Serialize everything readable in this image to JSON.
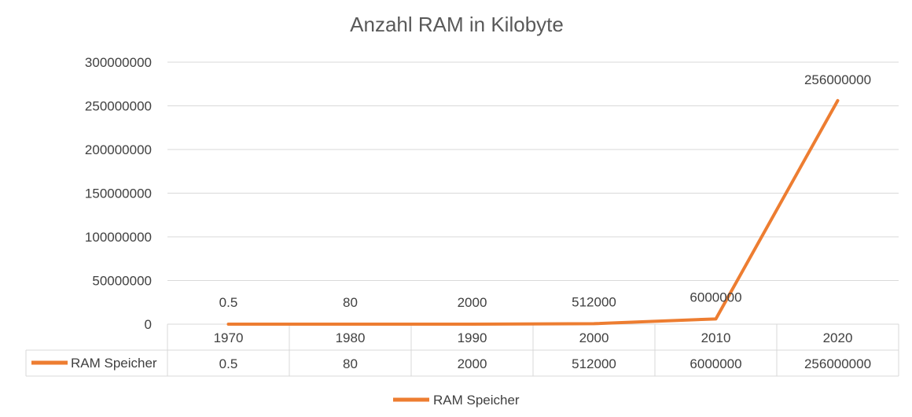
{
  "chart_data": {
    "type": "line",
    "title": "Anzahl RAM in Kilobyte",
    "categories": [
      "1970",
      "1980",
      "1990",
      "2000",
      "2010",
      "2020"
    ],
    "series": [
      {
        "name": "RAM Speicher",
        "values": [
          0.5,
          80,
          2000,
          512000,
          6000000,
          256000000
        ],
        "labels": [
          "0.5",
          "80",
          "2000",
          "512000",
          "6000000",
          "256000000"
        ],
        "color": "#ED7D31"
      }
    ],
    "ylim": [
      0,
      300000000
    ],
    "yticks": [
      "0",
      "50000000",
      "100000000",
      "150000000",
      "200000000",
      "250000000",
      "300000000"
    ],
    "grid": true,
    "data_table": true,
    "legend": "bottom"
  }
}
